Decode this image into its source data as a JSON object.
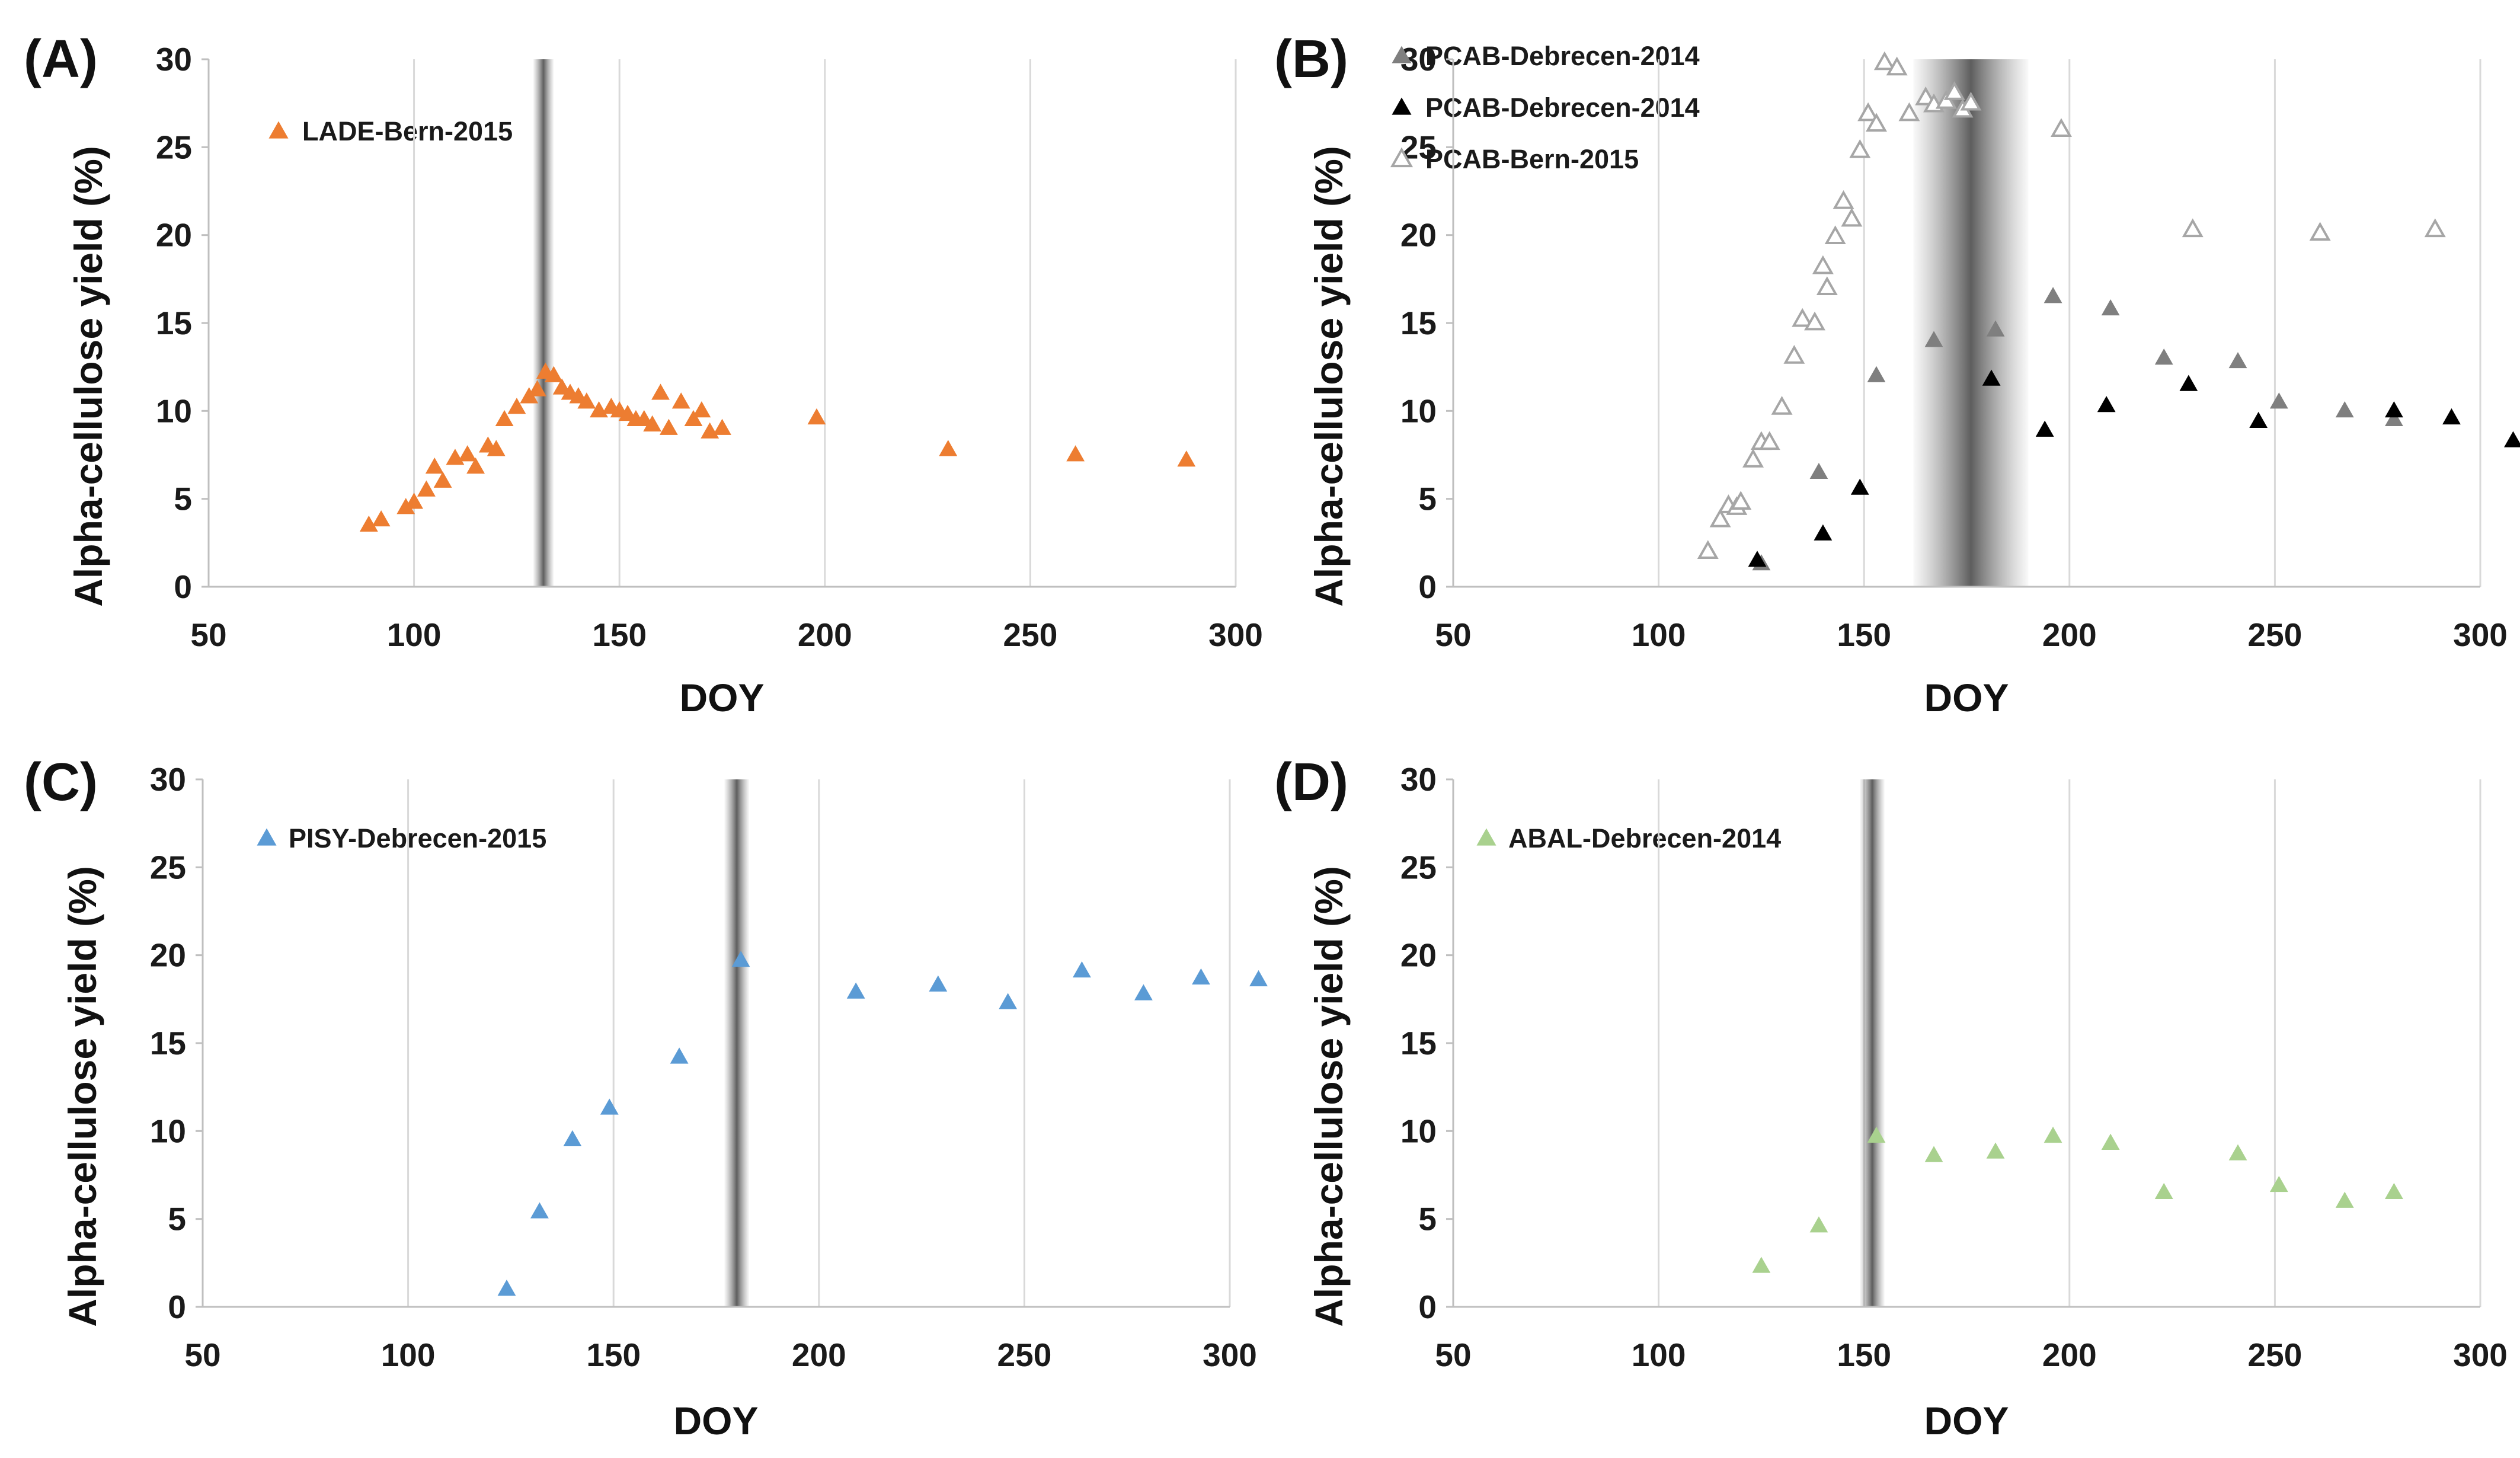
{
  "chart_data": [
    {
      "id": "A",
      "type": "scatter",
      "panel_label": "(A)",
      "xlabel": "DOY",
      "ylabel": "Alpha-cellulose yield (%)",
      "xlim": [
        50,
        300
      ],
      "ylim": [
        0,
        30
      ],
      "xticks": [
        50,
        100,
        150,
        200,
        250,
        300
      ],
      "yticks": [
        0,
        5,
        10,
        15,
        20,
        25,
        30
      ],
      "grid": "vertical",
      "legend_position": "top-left",
      "shaded_band_doy": [
        129,
        134
      ],
      "series": [
        {
          "name": "LADE-Bern-2015",
          "marker": "triangle-filled",
          "color": "#ED7D31",
          "x": [
            89,
            92,
            98,
            100,
            103,
            105,
            107,
            110,
            113,
            115,
            118,
            120,
            122,
            125,
            128,
            130,
            132,
            134,
            136,
            138,
            140,
            142,
            145,
            148,
            150,
            152,
            154,
            156,
            158,
            160,
            162,
            165,
            168,
            170,
            172,
            175,
            198,
            230,
            261,
            288
          ],
          "y": [
            3.5,
            3.8,
            4.5,
            4.8,
            5.5,
            6.8,
            6.0,
            7.3,
            7.5,
            6.8,
            8.0,
            7.8,
            9.5,
            10.2,
            10.8,
            11.2,
            12.2,
            12.0,
            11.3,
            11.0,
            10.8,
            10.5,
            10.0,
            10.2,
            10.0,
            9.8,
            9.5,
            9.5,
            9.2,
            11.0,
            9.0,
            10.5,
            9.5,
            10.0,
            8.8,
            9.0,
            9.6,
            7.8,
            7.5,
            7.2
          ]
        }
      ]
    },
    {
      "id": "B",
      "type": "scatter",
      "panel_label": "(B)",
      "xlabel": "DOY",
      "ylabel": "Alpha-cellulose yield (%)",
      "xlim": [
        50,
        300
      ],
      "ylim": [
        0,
        30
      ],
      "xticks": [
        50,
        100,
        150,
        200,
        250,
        300
      ],
      "yticks": [
        0,
        5,
        10,
        15,
        20,
        25,
        30
      ],
      "grid": "vertical",
      "legend_position": "top-left",
      "shaded_band_doy": [
        162,
        190
      ],
      "series": [
        {
          "name": "PCAB-Debrecen-2014",
          "marker": "triangle-filled",
          "color": "#7F7F7F",
          "x": [
            125,
            139,
            153,
            167,
            182,
            196,
            210,
            223,
            241,
            251,
            267,
            279
          ],
          "y": [
            1.3,
            6.5,
            12.0,
            14.0,
            14.6,
            16.5,
            15.8,
            13.0,
            12.8,
            10.5,
            10.0,
            9.5
          ]
        },
        {
          "name": "PCAB-Debrecen-2014",
          "marker": "triangle-filled",
          "color": "#000000",
          "x": [
            124,
            140,
            149,
            181,
            194,
            209,
            229,
            246,
            279,
            293,
            308
          ],
          "y": [
            1.5,
            3.0,
            5.6,
            11.8,
            8.9,
            10.3,
            11.5,
            9.4,
            10.0,
            9.6,
            8.3
          ]
        },
        {
          "name": "PCAB-Bern-2015",
          "marker": "triangle-open",
          "color": "#A6A6A6",
          "x": [
            112,
            115,
            117,
            119,
            120,
            123,
            125,
            127,
            130,
            133,
            135,
            138,
            140,
            141,
            143,
            145,
            147,
            149,
            151,
            153,
            155,
            158,
            161,
            165,
            167,
            170,
            172,
            174,
            176,
            198,
            230,
            261,
            289
          ],
          "y": [
            2.0,
            3.8,
            4.6,
            4.5,
            4.8,
            7.2,
            8.2,
            8.2,
            10.2,
            13.1,
            15.2,
            15.0,
            18.2,
            17.0,
            19.9,
            21.9,
            20.9,
            24.8,
            26.9,
            26.3,
            29.8,
            29.5,
            26.9,
            27.8,
            27.4,
            27.6,
            28.1,
            27.1,
            27.5,
            26.0,
            20.3,
            20.1,
            20.3
          ]
        }
      ]
    },
    {
      "id": "C",
      "type": "scatter",
      "panel_label": "(C)",
      "xlabel": "DOY",
      "ylabel": "Alpha-cellulose yield (%)",
      "xlim": [
        50,
        300
      ],
      "ylim": [
        0,
        30
      ],
      "xticks": [
        50,
        100,
        150,
        200,
        250,
        300
      ],
      "yticks": [
        0,
        5,
        10,
        15,
        20,
        25,
        30
      ],
      "grid": "vertical",
      "legend_position": "top-left",
      "shaded_band_doy": [
        177,
        183
      ],
      "series": [
        {
          "name": "PISY-Debrecen-2015",
          "marker": "triangle-filled",
          "color": "#5B9BD5",
          "x": [
            124,
            132,
            140,
            149,
            166,
            181,
            209,
            229,
            246,
            264,
            279,
            293,
            307
          ],
          "y": [
            1.0,
            5.4,
            9.5,
            11.3,
            14.2,
            19.7,
            17.9,
            18.3,
            17.3,
            19.1,
            17.8,
            18.7,
            18.6
          ]
        }
      ]
    },
    {
      "id": "D",
      "type": "scatter",
      "panel_label": "(D)",
      "xlabel": "DOY",
      "ylabel": "Alpha-cellulose yield (%)",
      "xlim": [
        50,
        300
      ],
      "ylim": [
        0,
        30
      ],
      "xticks": [
        50,
        100,
        150,
        200,
        250,
        300
      ],
      "yticks": [
        0,
        5,
        10,
        15,
        20,
        25,
        30
      ],
      "grid": "vertical",
      "legend_position": "top-left",
      "shaded_band_doy": [
        149,
        155
      ],
      "series": [
        {
          "name": "ABAL-Debrecen-2014",
          "marker": "triangle-filled",
          "color": "#A9D18E",
          "x": [
            125,
            139,
            153,
            167,
            182,
            196,
            210,
            223,
            241,
            251,
            267,
            279
          ],
          "y": [
            2.3,
            4.6,
            9.7,
            8.6,
            8.8,
            9.7,
            9.3,
            6.5,
            8.7,
            6.9,
            6.0,
            6.5
          ]
        }
      ]
    }
  ]
}
